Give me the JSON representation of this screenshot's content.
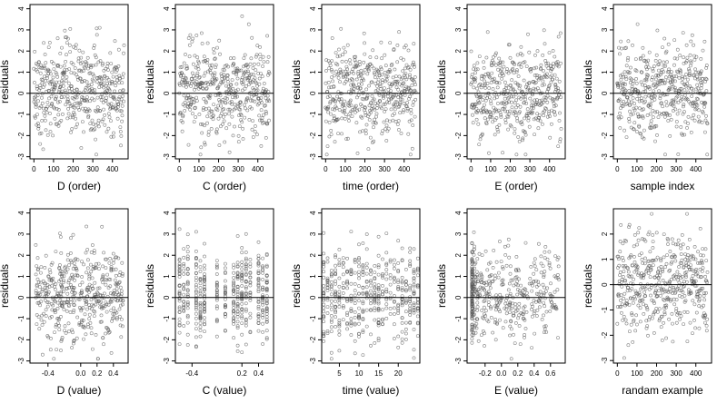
{
  "colors": {
    "point": "#555555",
    "axis": "#000000",
    "background": "#ffffff"
  },
  "chart_data": [
    {
      "type": "scatter",
      "xlabel": "D (order)",
      "ylabel": "residuals",
      "xlim": [
        -20,
        480
      ],
      "ylim": [
        -3.1,
        4.2
      ],
      "xticks": [
        "0",
        "100",
        "200",
        "300",
        "400"
      ],
      "xtick_values": [
        0,
        100,
        200,
        300,
        400
      ],
      "yticks": [
        "-3",
        "-2",
        "-1",
        "0",
        "1",
        "2",
        "3",
        "4"
      ],
      "ytick_values": [
        -3,
        -2,
        -1,
        0,
        1,
        2,
        3,
        4
      ],
      "hline": 0,
      "n_points": 460,
      "x_kind": "index",
      "y_spread": 1.1,
      "y_min": -2.9,
      "y_max": 4.0
    },
    {
      "type": "scatter",
      "xlabel": "C (order)",
      "ylabel": "residuals",
      "xlim": [
        -20,
        480
      ],
      "ylim": [
        -3.1,
        4.2
      ],
      "xticks": [
        "0",
        "100",
        "200",
        "300",
        "400"
      ],
      "xtick_values": [
        0,
        100,
        200,
        300,
        400
      ],
      "yticks": [
        "-3",
        "-2",
        "-1",
        "0",
        "1",
        "2",
        "3",
        "4"
      ],
      "ytick_values": [
        -3,
        -2,
        -1,
        0,
        1,
        2,
        3,
        4
      ],
      "hline": 0,
      "n_points": 460,
      "x_kind": "index",
      "y_spread": 1.1,
      "y_min": -2.9,
      "y_max": 4.0
    },
    {
      "type": "scatter",
      "xlabel": "time (order)",
      "ylabel": "residuals",
      "xlim": [
        -20,
        480
      ],
      "ylim": [
        -3.1,
        4.2
      ],
      "xticks": [
        "0",
        "100",
        "200",
        "300",
        "400"
      ],
      "xtick_values": [
        0,
        100,
        200,
        300,
        400
      ],
      "yticks": [
        "-3",
        "-2",
        "-1",
        "0",
        "1",
        "2",
        "3",
        "4"
      ],
      "ytick_values": [
        -3,
        -2,
        -1,
        0,
        1,
        2,
        3,
        4
      ],
      "hline": 0,
      "n_points": 460,
      "x_kind": "index",
      "y_spread": 1.1,
      "y_min": -2.9,
      "y_max": 4.0
    },
    {
      "type": "scatter",
      "xlabel": "E (order)",
      "ylabel": "residuals",
      "xlim": [
        -20,
        480
      ],
      "ylim": [
        -3.1,
        4.2
      ],
      "xticks": [
        "0",
        "100",
        "200",
        "300",
        "400"
      ],
      "xtick_values": [
        0,
        100,
        200,
        300,
        400
      ],
      "yticks": [
        "-3",
        "-2",
        "-1",
        "0",
        "1",
        "2",
        "3",
        "4"
      ],
      "ytick_values": [
        -3,
        -2,
        -1,
        0,
        1,
        2,
        3,
        4
      ],
      "hline": 0,
      "n_points": 460,
      "x_kind": "index",
      "y_spread": 1.1,
      "y_min": -2.9,
      "y_max": 4.0
    },
    {
      "type": "scatter",
      "xlabel": "sample index",
      "ylabel": "residuals",
      "xlim": [
        -20,
        480
      ],
      "ylim": [
        -3.1,
        4.2
      ],
      "xticks": [
        "0",
        "100",
        "200",
        "300",
        "400"
      ],
      "xtick_values": [
        0,
        100,
        200,
        300,
        400
      ],
      "yticks": [
        "-3",
        "-2",
        "-1",
        "0",
        "1",
        "2",
        "3",
        "4"
      ],
      "ytick_values": [
        -3,
        -2,
        -1,
        0,
        1,
        2,
        3,
        4
      ],
      "hline": 0,
      "n_points": 460,
      "x_kind": "index",
      "y_spread": 1.1,
      "y_min": -2.9,
      "y_max": 4.0
    },
    {
      "type": "scatter",
      "xlabel": "D (value)",
      "ylabel": "residuals",
      "xlim": [
        -0.62,
        0.58
      ],
      "ylim": [
        -3.1,
        4.2
      ],
      "xticks": [
        "-0.4",
        "0.0",
        "0.2",
        "0.4"
      ],
      "xtick_values": [
        -0.4,
        0.0,
        0.2,
        0.4
      ],
      "yticks": [
        "-3",
        "-2",
        "-1",
        "0",
        "1",
        "2",
        "3",
        "4"
      ],
      "ytick_values": [
        -3,
        -2,
        -1,
        0,
        1,
        2,
        3,
        4
      ],
      "hline": 0,
      "n_points": 460,
      "x_kind": "uniform",
      "x_range": [
        -0.55,
        0.52
      ],
      "y_spread": 1.1,
      "y_min": -2.9,
      "y_max": 4.0
    },
    {
      "type": "scatter",
      "xlabel": "C (value)",
      "ylabel": "residuals",
      "xlim": [
        -0.6,
        0.58
      ],
      "ylim": [
        -3.1,
        4.2
      ],
      "xticks": [
        "-0.4",
        "0.2",
        "0.4"
      ],
      "xtick_values": [
        -0.4,
        0.2,
        0.4
      ],
      "yticks": [
        "-3",
        "-2",
        "-1",
        "0",
        "1",
        "2",
        "3",
        "4"
      ],
      "ytick_values": [
        -3,
        -2,
        -1,
        0,
        1,
        2,
        3,
        4
      ],
      "hline": 0,
      "n_points": 460,
      "x_kind": "levels",
      "x_levels": [
        -0.55,
        -0.5,
        -0.45,
        -0.35,
        -0.3,
        -0.25,
        -0.1,
        0.0,
        0.1,
        0.15,
        0.2,
        0.25,
        0.3,
        0.4,
        0.45,
        0.5
      ],
      "y_spread": 1.1,
      "y_min": -2.9,
      "y_max": 4.0
    },
    {
      "type": "scatter",
      "xlabel": "time (value)",
      "ylabel": "residuals",
      "xlim": [
        0.5,
        25.5
      ],
      "ylim": [
        -3.1,
        4.2
      ],
      "xticks": [
        "5",
        "10",
        "15",
        "20"
      ],
      "xtick_values": [
        5,
        10,
        15,
        20
      ],
      "yticks": [
        "-3",
        "-2",
        "-1",
        "0",
        "1",
        "2",
        "3",
        "4"
      ],
      "ytick_values": [
        -3,
        -2,
        -1,
        0,
        1,
        2,
        3,
        4
      ],
      "hline": 0,
      "n_points": 460,
      "x_kind": "levels",
      "x_levels": [
        1,
        2,
        3,
        4,
        5,
        6,
        7,
        8,
        9,
        10,
        11,
        12,
        13,
        14,
        15,
        16,
        17,
        18,
        19,
        20,
        21,
        22,
        23,
        24,
        25
      ],
      "y_spread": 1.1,
      "y_min": -2.9,
      "y_max": 4.0
    },
    {
      "type": "scatter",
      "xlabel": "E (value)",
      "ylabel": "residuals",
      "xlim": [
        -0.42,
        0.78
      ],
      "ylim": [
        -3.1,
        4.2
      ],
      "xticks": [
        "-0.2",
        "0.0",
        "0.2",
        "0.4",
        "0.6"
      ],
      "xtick_values": [
        -0.2,
        0.0,
        0.2,
        0.4,
        0.6
      ],
      "yticks": [
        "-3",
        "-2",
        "-1",
        "0",
        "1",
        "2",
        "3",
        "4"
      ],
      "ytick_values": [
        -3,
        -2,
        -1,
        0,
        1,
        2,
        3,
        4
      ],
      "hline": 0,
      "n_points": 460,
      "x_kind": "skewed",
      "x_range": [
        -0.36,
        0.72
      ],
      "y_spread": 1.1,
      "y_min": -2.9,
      "y_max": 4.0
    },
    {
      "type": "scatter",
      "xlabel": "randam example",
      "ylabel": "residuals",
      "xlim": [
        -20,
        480
      ],
      "ylim": [
        -3.1,
        3.0
      ],
      "xticks": [
        "0",
        "100",
        "200",
        "300",
        "400"
      ],
      "xtick_values": [
        0,
        100,
        200,
        300,
        400
      ],
      "yticks": [
        "-3",
        "-2",
        "-1",
        "0",
        "1",
        "2"
      ],
      "ytick_values": [
        -3,
        -2,
        -1,
        0,
        1,
        2
      ],
      "hline": 0,
      "n_points": 460,
      "x_kind": "index",
      "y_spread": 1.0,
      "y_min": -2.9,
      "y_max": 2.8
    }
  ]
}
